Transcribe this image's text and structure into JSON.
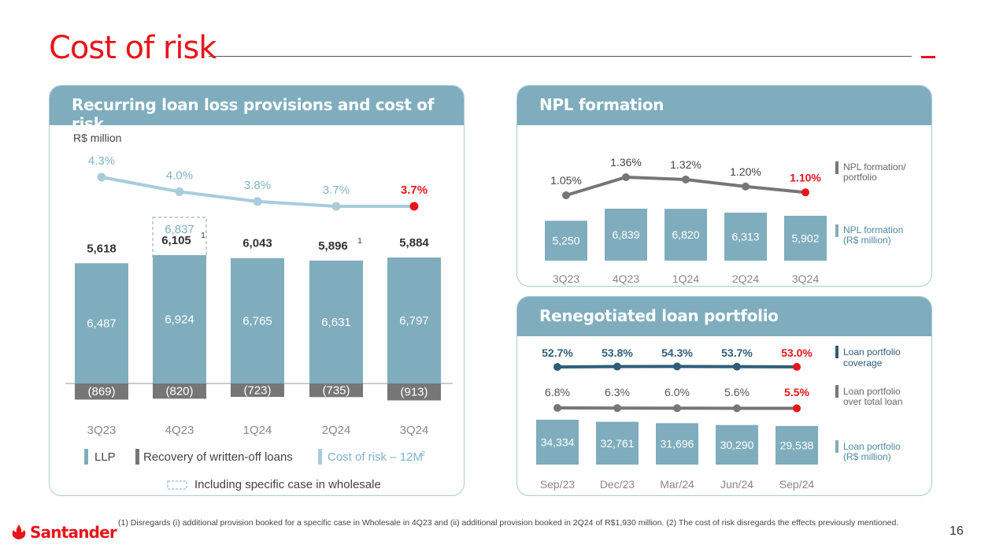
{
  "slide": {
    "title": "Cost of risk",
    "page_number": "16"
  },
  "brand": {
    "name": "Santander",
    "color": "#e8141a"
  },
  "footnote": "(1) Disregards (i) additional provision booked for a specific case in Wholesale in 4Q23 and (ii) additional provision booked in 2Q24 of R$1,930 million. (2) The cost of risk disregards the effects previously mentioned.",
  "colors": {
    "bar": "#7fadbd",
    "recovery": "#767676",
    "cor_line": "#a9ccdb",
    "npl_line": "#767676",
    "coverage_line": "#2f5d78",
    "highlight": "#e8141a",
    "label": "#2f5d78"
  },
  "chart_data": [
    {
      "type": "bar",
      "title": "Recurring loan loss provisions and cost of risk",
      "unit_label": "R$ million",
      "categories": [
        "3Q23",
        "4Q23",
        "1Q24",
        "2Q24",
        "3Q24"
      ],
      "series": [
        {
          "name": "LLP",
          "values": [
            6487,
            6924,
            6765,
            6631,
            6797
          ],
          "labels": [
            "6,487",
            "6,924",
            "6,765",
            "6,631",
            "6,797"
          ]
        },
        {
          "name": "Recovery of written-off loans",
          "values": [
            -869,
            -820,
            -723,
            -735,
            -913
          ],
          "labels": [
            "(869)",
            "(820)",
            "(723)",
            "(735)",
            "(913)"
          ]
        },
        {
          "name": "Net total",
          "values": [
            5618,
            6105,
            6043,
            5896,
            5884
          ],
          "labels": [
            "5,618",
            "6,105",
            "6,043",
            "5,896",
            "5,884"
          ],
          "footnote_marks": [
            "",
            "1",
            "",
            "1",
            ""
          ]
        },
        {
          "name": "Cost of risk – 12M",
          "values": [
            4.3,
            4.0,
            3.8,
            3.7,
            3.7
          ],
          "labels": [
            "4.3%",
            "4.0%",
            "3.8%",
            "3.7%",
            "3.7%"
          ]
        }
      ],
      "specific_case": {
        "category": "4Q23",
        "value": 6837,
        "label": "6,837"
      },
      "legend": {
        "llp": "LLP",
        "recovery": "Recovery of written-off loans",
        "cor": "Cost of risk – 12M",
        "cor_sup": "2",
        "specific": "Including specific case in wholesale"
      }
    },
    {
      "type": "bar",
      "title": "NPL formation",
      "categories": [
        "3Q23",
        "4Q23",
        "1Q24",
        "2Q24",
        "3Q24"
      ],
      "series": [
        {
          "name": "NPL formation (R$ million)",
          "values": [
            5250,
            6839,
            6820,
            6313,
            5902
          ],
          "labels": [
            "5,250",
            "6,839",
            "6,820",
            "6,313",
            "5,902"
          ]
        },
        {
          "name": "NPL formation/ portfolio",
          "values": [
            1.05,
            1.36,
            1.32,
            1.2,
            1.1
          ],
          "labels": [
            "1.05%",
            "1.36%",
            "1.32%",
            "1.20%",
            "1.10%"
          ]
        }
      ],
      "legend": {
        "ratio_1": "NPL formation/",
        "ratio_2": "portfolio",
        "amount_1": "NPL formation",
        "amount_2": "(R$ million)"
      }
    },
    {
      "type": "bar",
      "title": "Renegotiated loan portfolio",
      "categories": [
        "Sep/23",
        "Dec/23",
        "Mar/24",
        "Jun/24",
        "Sep/24"
      ],
      "series": [
        {
          "name": "Loan portfolio coverage",
          "values": [
            52.7,
            53.8,
            54.3,
            53.7,
            53.0
          ],
          "labels": [
            "52.7%",
            "53.8%",
            "54.3%",
            "53.7%",
            "53.0%"
          ]
        },
        {
          "name": "Loan portfolio over total loan",
          "values": [
            6.8,
            6.3,
            6.0,
            5.6,
            5.5
          ],
          "labels": [
            "6.8%",
            "6.3%",
            "6.0%",
            "5.6%",
            "5.5%"
          ]
        },
        {
          "name": "Loan portfolio (R$ million)",
          "values": [
            34334,
            32761,
            31696,
            30290,
            29538
          ],
          "labels": [
            "34,334",
            "32,761",
            "31,696",
            "30,290",
            "29,538"
          ]
        }
      ],
      "legend": {
        "cov_1": "Loan portfolio",
        "cov_2": "coverage",
        "share_1": "Loan portfolio",
        "share_2": "over total loan",
        "amt_1": "Loan portfolio",
        "amt_2": "(R$ million)"
      }
    }
  ]
}
